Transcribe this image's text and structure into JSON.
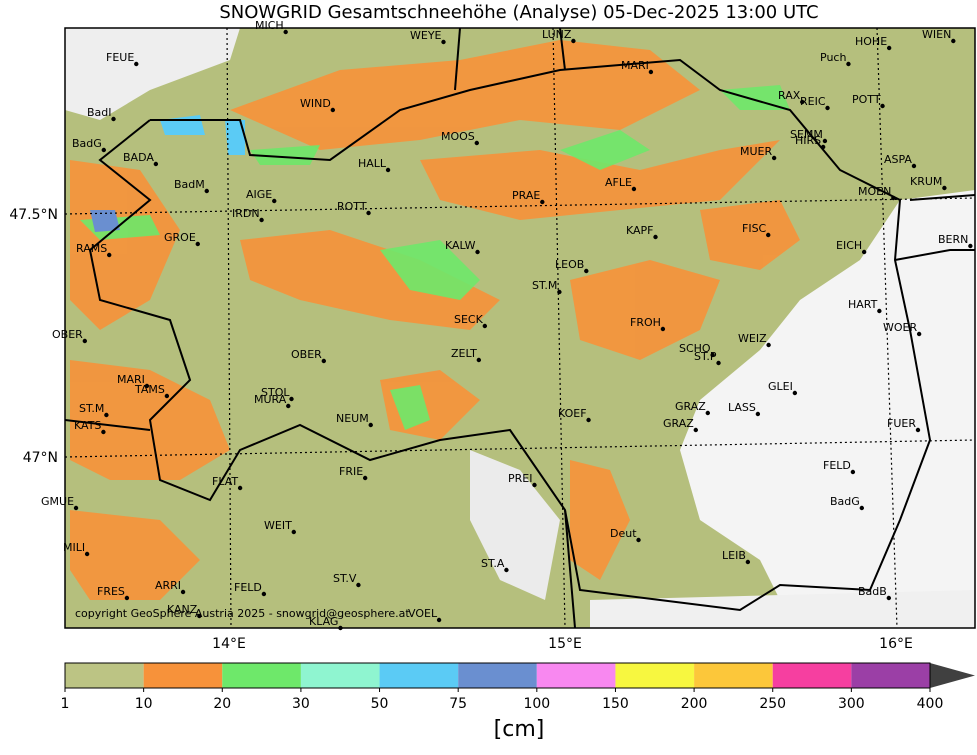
{
  "title": "SNOWGRID Gesamtschneehöhe (Analyse) 05-Dec-2025 13:00 UTC",
  "copyright": "copyright GeoSphere Austria 2025 - snowgrid@geosphere.at",
  "axes": {
    "lon": [
      "14°E",
      "15°E",
      "16°E"
    ],
    "lat": [
      "47.5°N",
      "47°N"
    ]
  },
  "stations": [
    "MICH",
    "FEUE",
    "WEYE",
    "LUNZ",
    "HOHE",
    "WIEN",
    "Puch",
    "MARI",
    "BadI",
    "WIND",
    "RAX",
    "REIC",
    "POTT",
    "BadG",
    "MOOS",
    "SEMM",
    "HIRS",
    "BADA",
    "HALL",
    "MUER",
    "ASPA",
    "BadM",
    "AFLE",
    "KRUM",
    "AIGE",
    "PRAE",
    "MOEN",
    "ROTT",
    "IRDN",
    "KAPF",
    "FISC",
    "GROE",
    "KALW",
    "EICH",
    "BERN",
    "RAMS",
    "LEOB",
    "ST.M",
    "HART",
    "SECK",
    "FROH",
    "WOER",
    "OBER",
    "WEIZ",
    "SCHO",
    "ST.P",
    "OBER",
    "ZELT",
    "MARI",
    "TAMS",
    "GLEI",
    "STOL",
    "MURA",
    "GRAZ",
    "LASS",
    "ST.M",
    "NEUM",
    "KOEF",
    "GRAZ",
    "FUER",
    "KATS",
    "FELD",
    "FRIE",
    "PREI",
    "FLAT",
    "GMUE",
    "BadG",
    "WEIT",
    "Deut",
    "MILI",
    "LEIB",
    "ST.A",
    "ST.V",
    "ARRI",
    "FELD",
    "FRES",
    "BadB",
    "KANZ",
    "VOEL",
    "KLAG"
  ],
  "colorbar": {
    "bounds": [
      1,
      10,
      20,
      30,
      50,
      75,
      100,
      150,
      200,
      250,
      300,
      400
    ],
    "colors": [
      "#bcc484",
      "#f7923a",
      "#6ee86a",
      "#8ff5d0",
      "#5bcbf5",
      "#6a8fd0",
      "#f888f0",
      "#f7f740",
      "#fcc73a",
      "#f63fa0",
      "#9b3fa6"
    ],
    "over_color": "#404040",
    "unit": "[cm]"
  }
}
